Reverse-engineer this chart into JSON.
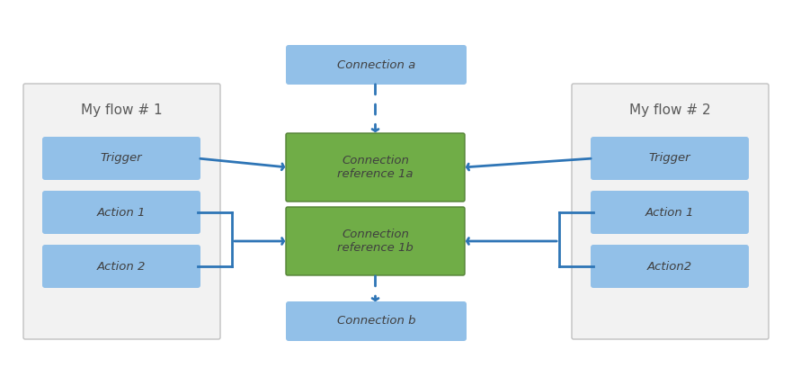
{
  "bg_color": "#ffffff",
  "flow_box_color": "#f2f2f2",
  "flow_box_edge_color": "#c0c0c0",
  "blue_box_color": "#92c0e8",
  "blue_box_edge_color": "#6aaad4",
  "green_box_color": "#70ad47",
  "green_box_edge_color": "#538135",
  "arrow_color": "#2e75b6",
  "text_color": "#595959",
  "flow1_title": "My flow # 1",
  "flow2_title": "My flow # 2",
  "flow1_items": [
    "Trigger",
    "Action 1",
    "Action 2"
  ],
  "flow2_items": [
    "Trigger",
    "Action 1",
    "Action2"
  ],
  "conn_ref_1a": "Connection\nreference 1a",
  "conn_ref_1b": "Connection\nreference 1b",
  "conn_a": "Connection a",
  "conn_b": "Connection b",
  "figsize": [
    8.81,
    4.09
  ],
  "dpi": 100
}
